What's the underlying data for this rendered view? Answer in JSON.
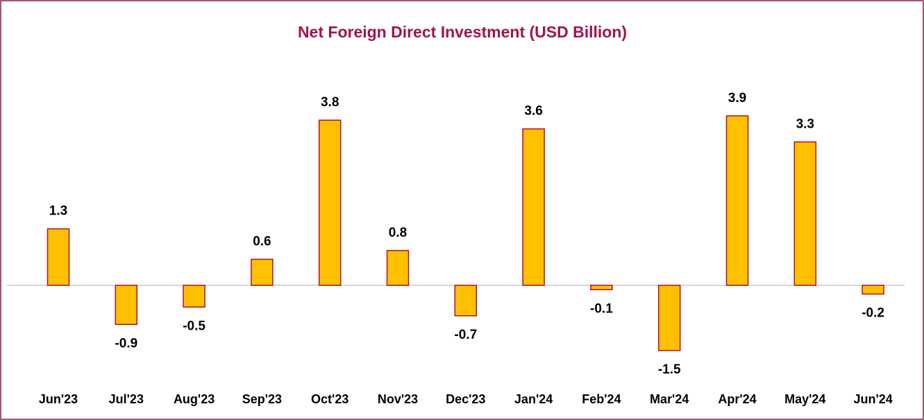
{
  "chart_data": {
    "type": "bar",
    "title": "Net Foreign Direct Investment (USD Billion)",
    "categories": [
      "Jun'23",
      "Jul'23",
      "Aug'23",
      "Sep'23",
      "Oct'23",
      "Nov'23",
      "Dec'23",
      "Jan'24",
      "Feb'24",
      "Mar'24",
      "Apr'24",
      "May'24",
      "Jun'24"
    ],
    "values": [
      1.3,
      -0.9,
      -0.5,
      0.6,
      3.8,
      0.8,
      -0.7,
      3.6,
      -0.1,
      -1.5,
      3.9,
      3.3,
      -0.2
    ],
    "color": "#ffc000",
    "edge_color": "#b0102a"
  }
}
